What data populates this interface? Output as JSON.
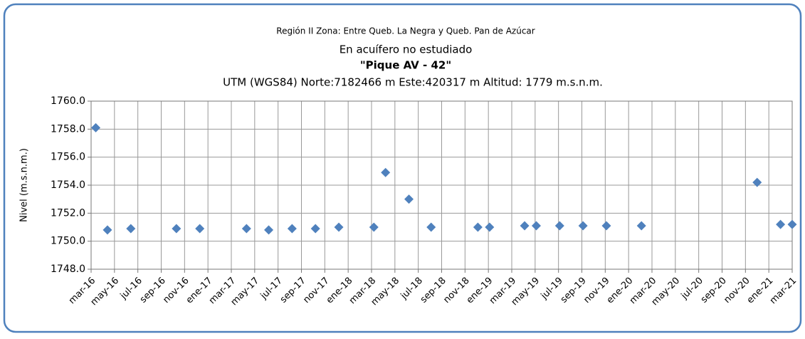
{
  "chart_data": {
    "type": "scatter",
    "title": "Región II  Zona: Entre Queb. La Negra y Queb. Pan de Azúcar",
    "subtitles": [
      "En acuífero no estudiado",
      "\"Pique AV - 42\"",
      "UTM (WGS84) Norte:7182466 m   Este:420317 m Altitud: 1779 m.s.n.m."
    ],
    "y_label": "Nivel (m.s.n.m.)",
    "color": "#4f81bd",
    "grid": true,
    "x": [
      0.4,
      1.4,
      3.4,
      7.3,
      9.3,
      13.3,
      15.2,
      17.2,
      19.2,
      21.2,
      24.2,
      25.2,
      27.2,
      29.1,
      33.1,
      34.1,
      37.1,
      38.1,
      40.1,
      42.1,
      44.1,
      47.1,
      57.0,
      59.0,
      60.0
    ],
    "values": [
      1758.1,
      1750.8,
      1750.9,
      1750.9,
      1750.9,
      1750.9,
      1750.8,
      1750.9,
      1750.9,
      1751.0,
      1751.0,
      1754.9,
      1753.0,
      1751.0,
      1751.0,
      1751.0,
      1751.1,
      1751.1,
      1751.1,
      1751.1,
      1751.1,
      1751.1,
      1754.2,
      1751.2,
      1751.2
    ],
    "xlim": [
      0,
      60
    ],
    "xticks": [
      {
        "value": 0,
        "label": "mar-16"
      },
      {
        "value": 2,
        "label": "may-16"
      },
      {
        "value": 4,
        "label": "jul-16"
      },
      {
        "value": 6,
        "label": "sep-16"
      },
      {
        "value": 8,
        "label": "nov-16"
      },
      {
        "value": 10,
        "label": "ene-17"
      },
      {
        "value": 12,
        "label": "mar-17"
      },
      {
        "value": 14,
        "label": "may-17"
      },
      {
        "value": 16,
        "label": "jul-17"
      },
      {
        "value": 18,
        "label": "sep-17"
      },
      {
        "value": 20,
        "label": "nov-17"
      },
      {
        "value": 22,
        "label": "ene-18"
      },
      {
        "value": 24,
        "label": "mar-18"
      },
      {
        "value": 26,
        "label": "may-18"
      },
      {
        "value": 28,
        "label": "jul-18"
      },
      {
        "value": 30,
        "label": "sep-18"
      },
      {
        "value": 32,
        "label": "nov-18"
      },
      {
        "value": 34,
        "label": "ene-19"
      },
      {
        "value": 36,
        "label": "mar-19"
      },
      {
        "value": 38,
        "label": "may-19"
      },
      {
        "value": 40,
        "label": "jul-19"
      },
      {
        "value": 42,
        "label": "sep-19"
      },
      {
        "value": 44,
        "label": "nov-19"
      },
      {
        "value": 46,
        "label": "ene-20"
      },
      {
        "value": 48,
        "label": "mar-20"
      },
      {
        "value": 50,
        "label": "may-20"
      },
      {
        "value": 52,
        "label": "jul-20"
      },
      {
        "value": 54,
        "label": "sep-20"
      },
      {
        "value": 56,
        "label": "nov-20"
      },
      {
        "value": 58,
        "label": "ene-21"
      },
      {
        "value": 60,
        "label": "mar-21"
      }
    ],
    "ylim": [
      1748,
      1760
    ],
    "yticks": [
      {
        "value": 1748,
        "label": "1748.0"
      },
      {
        "value": 1750,
        "label": "1750.0"
      },
      {
        "value": 1752,
        "label": "1752.0"
      },
      {
        "value": 1754,
        "label": "1754.0"
      },
      {
        "value": 1756,
        "label": "1756.0"
      },
      {
        "value": 1758,
        "label": "1758.0"
      },
      {
        "value": 1760,
        "label": "1760.0"
      }
    ]
  }
}
